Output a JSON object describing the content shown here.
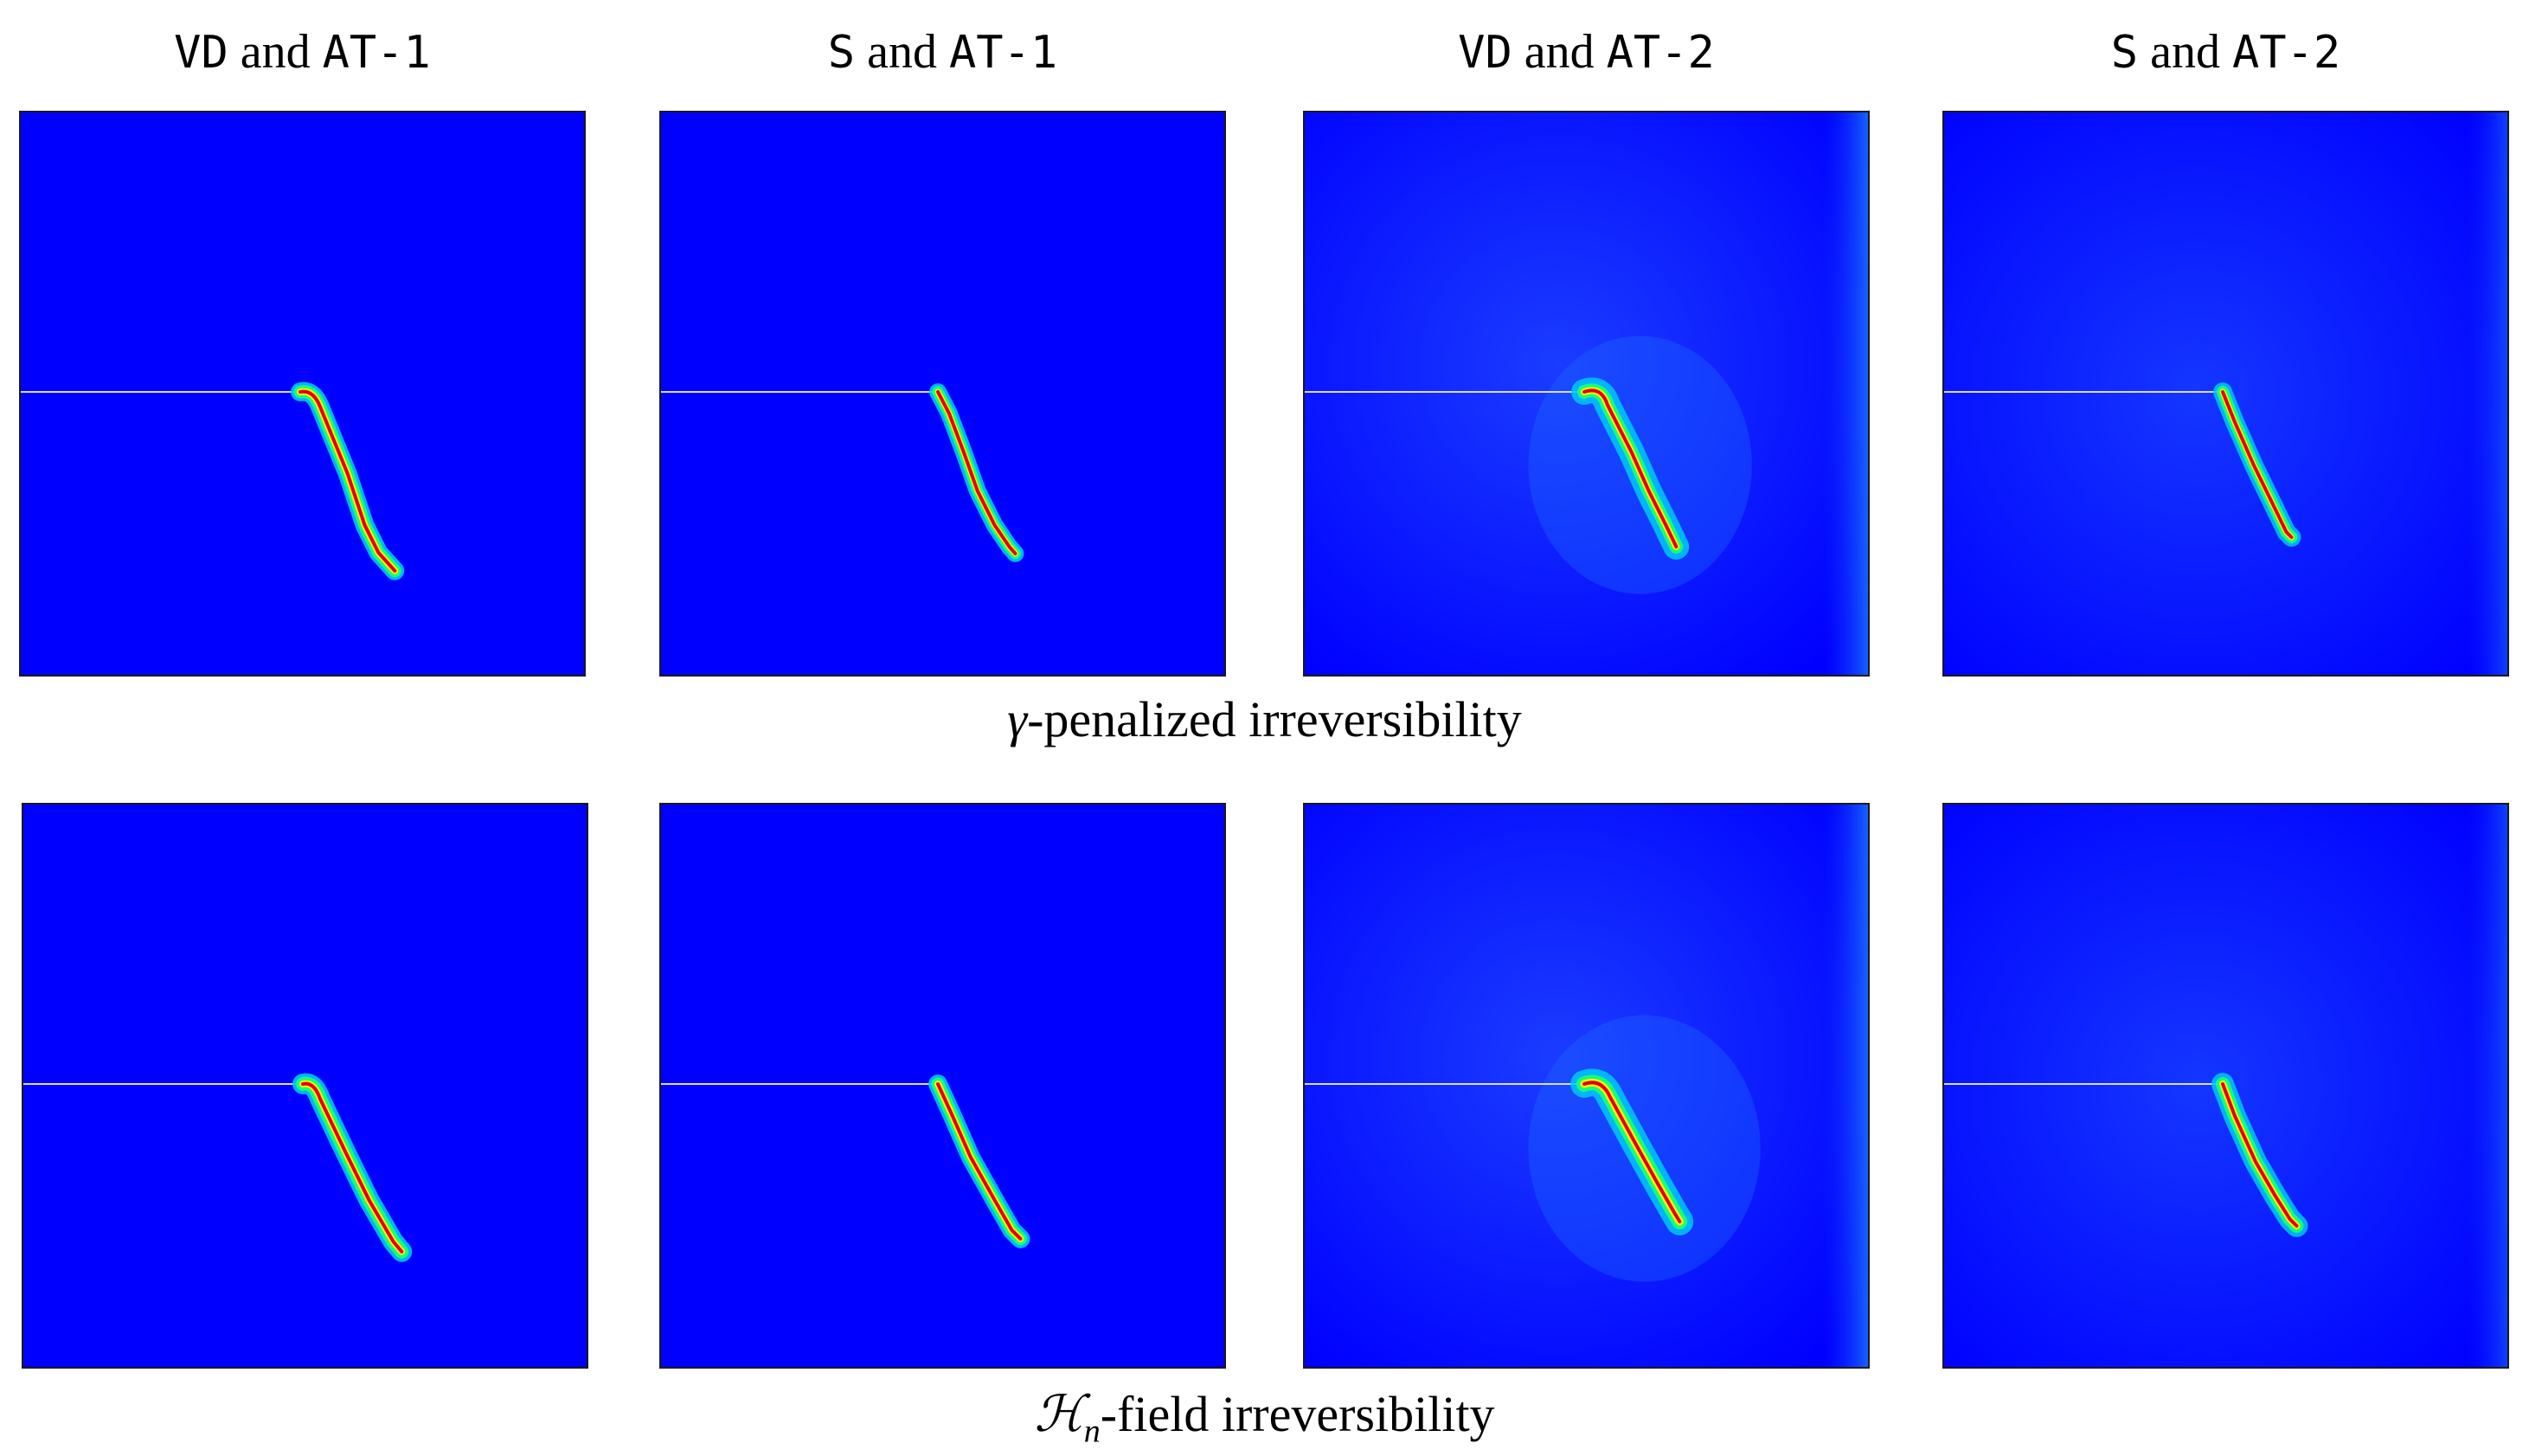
{
  "columns": [
    {
      "model": "VD",
      "joiner": "and",
      "law": "AT-1"
    },
    {
      "model": "S",
      "joiner": "and",
      "law": "AT-1"
    },
    {
      "model": "VD",
      "joiner": "and",
      "law": "AT-2"
    },
    {
      "model": "S",
      "joiner": "and",
      "law": "AT-2"
    }
  ],
  "rows": [
    {
      "symbol": "γ",
      "subscript": "",
      "caption": "-penalized irreversibility"
    },
    {
      "symbol": "ℋ",
      "subscript": "n",
      "caption": "-field irreversibility"
    }
  ],
  "colors": {
    "background_field": "#0000ff",
    "halo_light": "#00c8ff",
    "halo_green": "#14ff7a",
    "band_yellow": "#fff000",
    "crack_core": "#e00000",
    "notch_line": "#ffffff"
  }
}
